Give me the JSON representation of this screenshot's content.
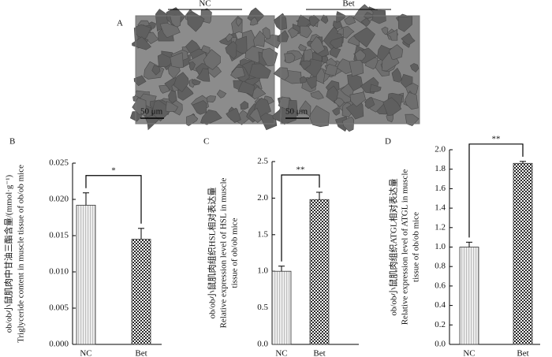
{
  "panel_a": {
    "label": "A",
    "images": [
      {
        "group": "NC",
        "scale": "50 μm"
      },
      {
        "group": "Bet",
        "scale": "50 μm"
      }
    ]
  },
  "chart_data": [
    {
      "type": "bar",
      "panel": "B",
      "ylabel": [
        "ob/ob小鼠肌肉中甘油三酯含量/(mmol·g⁻¹)",
        "Triglyceride content in muscle tissue of ob/ob mice"
      ],
      "categories": [
        "NC",
        "Bet"
      ],
      "values": [
        0.0192,
        0.0145
      ],
      "errors": [
        0.0017,
        0.0015
      ],
      "colors": [
        "#bdbdbd",
        "#2b2b2b"
      ],
      "ylim": [
        0,
        0.025
      ],
      "yticks": [
        {
          "value": 0,
          "label": "0.000"
        },
        {
          "value": 0.005,
          "label": "0.005"
        },
        {
          "value": 0.01,
          "label": "0.010"
        },
        {
          "value": 0.015,
          "label": "0.015"
        },
        {
          "value": 0.02,
          "label": "0.020"
        },
        {
          "value": 0.025,
          "label": "0.025"
        }
      ],
      "significance": "*"
    },
    {
      "type": "bar",
      "panel": "C",
      "ylabel": [
        "ob/ob小鼠肌肉组织HSL相对表达量",
        "Relative expression level of HSL in muscle",
        "tissue of ob/ob mice"
      ],
      "categories": [
        "NC",
        "Bet"
      ],
      "values": [
        1.0,
        1.98
      ],
      "errors": [
        0.07,
        0.1
      ],
      "colors": [
        "#bdbdbd",
        "#2b2b2b"
      ],
      "ylim": [
        0,
        2.5
      ],
      "yticks": [
        {
          "value": 0,
          "label": "0.0"
        },
        {
          "value": 0.5,
          "label": "0.5"
        },
        {
          "value": 1,
          "label": "1.0"
        },
        {
          "value": 1.5,
          "label": "1.5"
        },
        {
          "value": 2,
          "label": "2.0"
        },
        {
          "value": 2.5,
          "label": "2.5"
        }
      ],
      "significance": "**"
    },
    {
      "type": "bar",
      "panel": "D",
      "ylabel": [
        "ob/ob小鼠肌肉组织ATGL相对表达量",
        "Relative expression level of ATGL in muscle",
        "tissue of ob/ob mice"
      ],
      "categories": [
        "NC",
        "Bet"
      ],
      "values": [
        1.0,
        1.86
      ],
      "errors": [
        0.05,
        0.02
      ],
      "colors": [
        "#bdbdbd",
        "#2b2b2b"
      ],
      "ylim": [
        0,
        2.0
      ],
      "yticks": [
        {
          "value": 0,
          "label": "0.0"
        },
        {
          "value": 0.2,
          "label": "0.2"
        },
        {
          "value": 0.4,
          "label": "0.4"
        },
        {
          "value": 0.6,
          "label": "0.6"
        },
        {
          "value": 0.8,
          "label": "0.8"
        },
        {
          "value": 1,
          "label": "1.0"
        },
        {
          "value": 1.2,
          "label": "1.2"
        },
        {
          "value": 1.4,
          "label": "1.4"
        },
        {
          "value": 1.6,
          "label": "1.6"
        },
        {
          "value": 1.8,
          "label": "1.8"
        },
        {
          "value": 2,
          "label": "2.0"
        }
      ],
      "significance": "**"
    }
  ]
}
